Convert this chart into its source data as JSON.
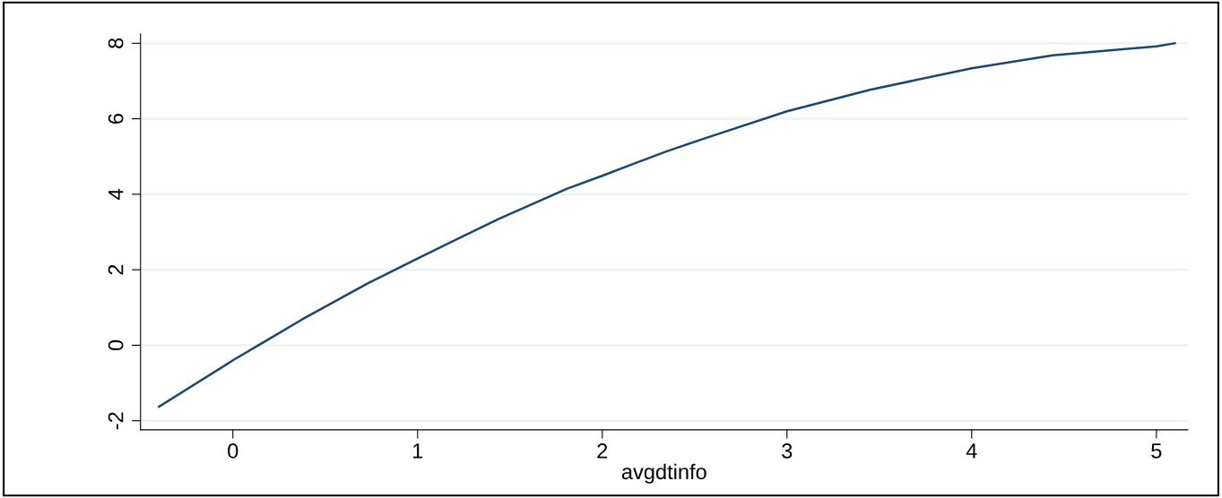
{
  "chart_data": {
    "type": "line",
    "xlabel": "avgdtinfo",
    "x": [
      -0.4,
      0,
      0.17,
      0.37,
      0.73,
      1,
      1.44,
      1.81,
      2,
      2.15,
      2.35,
      2.56,
      3,
      3.45,
      4,
      4.44,
      5,
      5.1
    ],
    "series": [
      {
        "color": "#1a476f",
        "values": [
          -1.63,
          -0.4,
          0.09,
          0.67,
          1.64,
          2.3,
          3.35,
          4.15,
          4.49,
          4.77,
          5.14,
          5.49,
          6.2,
          6.77,
          7.34,
          7.68,
          7.92,
          8.0
        ]
      }
    ],
    "xlim": [
      -0.5,
      5.17
    ],
    "ylim": [
      -2.24,
      8.25
    ],
    "xticks": [
      0,
      1,
      2,
      3,
      4,
      5
    ],
    "yticks": [
      -2,
      0,
      2,
      4,
      6,
      8
    ],
    "grid": "y",
    "marker": "none",
    "line_style": "solid"
  }
}
